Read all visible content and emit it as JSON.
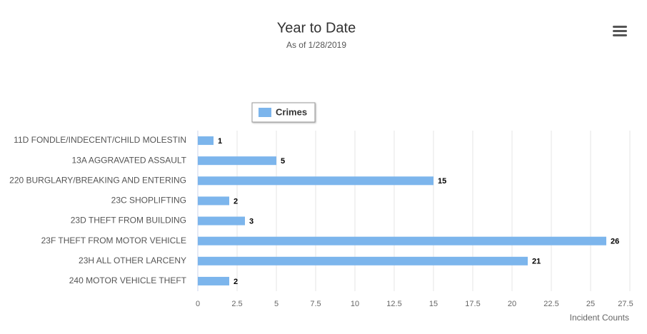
{
  "chart_data": {
    "type": "bar",
    "orientation": "horizontal",
    "title": "Year to Date",
    "subtitle": "As of 1/28/2019",
    "x_label": "Incident Counts",
    "categories": [
      "11D FONDLE/INDECENT/CHILD MOLESTIN",
      "13A AGGRAVATED ASSAULT",
      "220 BURGLARY/BREAKING AND ENTERING",
      "23C SHOPLIFTING",
      "23D THEFT FROM BUILDING",
      "23F THEFT FROM MOTOR VEHICLE",
      "23H ALL OTHER LARCENY",
      "240 MOTOR VEHICLE THEFT"
    ],
    "series": [
      {
        "name": "Crimes",
        "color": "#7cb5ec",
        "values": [
          1,
          5,
          15,
          2,
          3,
          26,
          21,
          2
        ]
      }
    ],
    "xlim": [
      0,
      27.5
    ],
    "xticks": [
      0,
      2.5,
      5,
      7.5,
      10,
      12.5,
      15,
      17.5,
      20,
      22.5,
      25,
      27.5
    ],
    "grid": true,
    "legend": "top"
  }
}
